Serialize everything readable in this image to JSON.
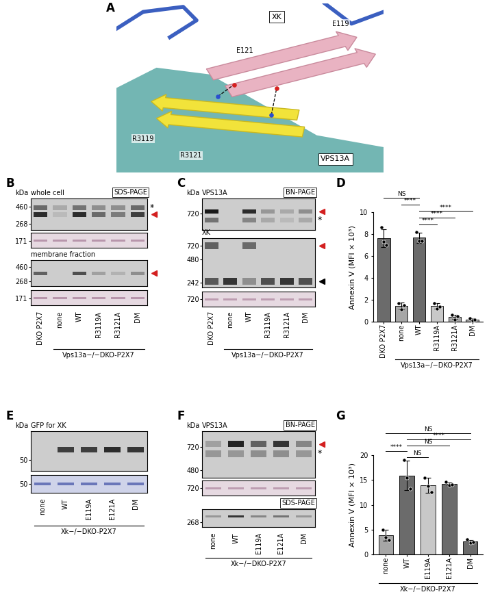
{
  "structure": {
    "panel": "A",
    "boxed_labels": [
      "XK",
      "VPS13A"
    ],
    "residue_labels": [
      "E121",
      "E119",
      "R3119",
      "R3121"
    ]
  },
  "blot_panels": [
    {
      "panel": "B",
      "unit": "kDa",
      "lanes": [
        "DKO P2X7",
        "none",
        "WT",
        "R3119A",
        "R3121A",
        "DM"
      ],
      "group_label": "Vps13a−/−DKO-P2X7",
      "group_members": [
        "none",
        "WT",
        "R3119A",
        "R3121A",
        "DM"
      ],
      "blots": [
        {
          "title": "whole cell",
          "method": "SDS-PAGE",
          "color": "#1a1a1a",
          "ylim": [
            220,
            600
          ],
          "markers": [
            268,
            460
          ],
          "bands": [
            {
              "kda": 445,
              "intensities": [
                0.55,
                0.2,
                0.5,
                0.35,
                0.35,
                0.55
              ]
            },
            {
              "kda": 360,
              "intensities": [
                0.9,
                0.1,
                0.9,
                0.55,
                0.45,
                0.8
              ]
            }
          ],
          "flags": [
            {
              "kda": 445,
              "symbol": "*"
            },
            {
              "kda": 360,
              "color": "#d32020"
            }
          ]
        },
        {
          "color": "#8c5478",
          "ylim": [
            150,
            200
          ],
          "markers": [
            171
          ],
          "bands": [
            {
              "kda": 172,
              "intensities": [
                0.5,
                0.5,
                0.5,
                0.5,
                0.5,
                0.5
              ]
            }
          ]
        },
        {
          "title": "membrane fraction",
          "color": "#1a1a1a",
          "ylim": [
            220,
            600
          ],
          "markers": [
            268,
            460
          ],
          "bands": [
            {
              "kda": 360,
              "intensities": [
                0.6,
                0.0,
                0.7,
                0.25,
                0.15,
                0.35
              ]
            }
          ],
          "flags": [
            {
              "kda": 360,
              "color": "#d32020"
            }
          ]
        },
        {
          "color": "#8c5478",
          "ylim": [
            150,
            200
          ],
          "markers": [
            171
          ],
          "bands": [
            {
              "kda": 172,
              "intensities": [
                0.5,
                0.5,
                0.5,
                0.5,
                0.5,
                0.5
              ]
            }
          ]
        }
      ]
    },
    {
      "panel": "C",
      "unit": "kDa",
      "lanes": [
        "DKO P2X7",
        "none",
        "WT",
        "R3119A",
        "R3121A",
        "DM"
      ],
      "group_label": "Vps13a−/−DKO-P2X7",
      "group_members": [
        "none",
        "WT",
        "R3119A",
        "R3121A",
        "DM"
      ],
      "blots": [
        {
          "title": "VPS13A",
          "method": "BN-PAGE",
          "color": "#1a1a1a",
          "ylim": [
            560,
            900
          ],
          "markers": [
            720
          ],
          "bands": [
            {
              "kda": 740,
              "intensities": [
                1.0,
                0.0,
                0.9,
                0.3,
                0.2,
                0.35
              ]
            },
            {
              "kda": 650,
              "intensities": [
                0.5,
                0.0,
                0.4,
                0.2,
                0.1,
                0.2
              ]
            }
          ],
          "flags": [
            {
              "kda": 740,
              "color": "#d32020"
            },
            {
              "kda": 650,
              "symbol": "*"
            }
          ]
        },
        {
          "title": "XK",
          "color": "#1a1a1a",
          "ylim": [
            210,
            900
          ],
          "markers": [
            242,
            480,
            720
          ],
          "bands": [
            {
              "kda": 720,
              "intensities": [
                0.6,
                0.0,
                0.55,
                0.0,
                0.0,
                0.0
              ]
            },
            {
              "kda": 250,
              "intensities": [
                0.65,
                0.85,
                0.35,
                0.7,
                0.85,
                0.7
              ]
            }
          ],
          "flags": [
            {
              "kda": 720,
              "color": "#d32020"
            },
            {
              "kda": 250,
              "color": "#000000"
            }
          ]
        },
        {
          "color": "#8c5478",
          "ylim": [
            650,
            800
          ],
          "markers": [
            720
          ],
          "bands": [
            {
              "kda": 720,
              "intensities": [
                0.45,
                0.45,
                0.45,
                0.45,
                0.45,
                0.45
              ]
            }
          ]
        }
      ]
    },
    {
      "panel": "E",
      "unit": "kDa",
      "lanes": [
        "none",
        "WT",
        "E119A",
        "E121A",
        "DM"
      ],
      "group_label": "Xk−/−DKO-P2X7",
      "group_members": [
        "none",
        "WT",
        "E119A",
        "E121A",
        "DM"
      ],
      "blots": [
        {
          "title": "GFP for XK",
          "color": "#1a1a1a",
          "ylim": [
            40,
            90
          ],
          "markers": [
            50
          ],
          "bands": [
            {
              "kda": 62,
              "intensities": [
                0.0,
                0.8,
                0.8,
                0.9,
                0.85
              ]
            }
          ]
        },
        {
          "color": "#27399a",
          "ylim": [
            42,
            60
          ],
          "markers": [
            50
          ],
          "bands": [
            {
              "kda": 50,
              "intensities": [
                0.6,
                0.6,
                0.6,
                0.6,
                0.6
              ]
            }
          ]
        }
      ]
    },
    {
      "panel": "F",
      "unit": "kDa",
      "lanes": [
        "none",
        "WT",
        "E119A",
        "E121A",
        "DM"
      ],
      "group_label": "Xk−/−DKO-P2X7",
      "group_members": [
        "none",
        "WT",
        "E119A",
        "E121A",
        "DM"
      ],
      "blots": [
        {
          "title": "VPS13A",
          "method": "BN-PAGE",
          "color": "#1a1a1a",
          "ylim": [
            420,
            950
          ],
          "markers": [
            480,
            720
          ],
          "bands": [
            {
              "kda": 760,
              "intensities": [
                0.25,
                0.95,
                0.6,
                0.85,
                0.4
              ]
            },
            {
              "kda": 640,
              "intensities": [
                0.3,
                0.3,
                0.35,
                0.35,
                0.3
              ]
            }
          ],
          "flags": [
            {
              "kda": 760,
              "color": "#d32020"
            },
            {
              "kda": 640,
              "symbol": "*"
            }
          ]
        },
        {
          "color": "#8c5478",
          "ylim": [
            650,
            800
          ],
          "markers": [
            720
          ],
          "bands": [
            {
              "kda": 720,
              "intensities": [
                0.45,
                0.45,
                0.45,
                0.45,
                0.45
              ]
            }
          ]
        },
        {
          "method": "SDS-PAGE",
          "color": "#1a1a1a",
          "ylim": [
            230,
            420
          ],
          "markers": [
            268
          ],
          "bands": [
            {
              "kda": 330,
              "intensities": [
                0.3,
                0.85,
                0.4,
                0.5,
                0.3
              ]
            }
          ]
        }
      ]
    }
  ],
  "chart_data": [
    {
      "type": "bar",
      "panel": "D",
      "ylabel": "Annexin V (MFI × 10³)",
      "categories": [
        "DKO P2X7",
        "none",
        "WT",
        "R3119A",
        "R3121A",
        "DM"
      ],
      "values": [
        7.63,
        1.43,
        7.67,
        1.43,
        0.43,
        0.2
      ],
      "errors": [
        0.8,
        0.3,
        0.47,
        0.25,
        0.2,
        0.1
      ],
      "points": [
        [
          8.6,
          7.3,
          7.0
        ],
        [
          1.7,
          1.1,
          1.5
        ],
        [
          8.2,
          7.4,
          7.4
        ],
        [
          1.7,
          1.2,
          1.4
        ],
        [
          0.6,
          0.2,
          0.5
        ],
        [
          0.3,
          0.1,
          0.2
        ]
      ],
      "colors": [
        "#6b6b6b",
        "#a6a6a6",
        "#6b6b6b",
        "#c8c8c8",
        "#a6a6a6",
        "#a6a6a6"
      ],
      "ylim": [
        0,
        10
      ],
      "yticks": [
        0,
        2,
        4,
        6,
        8,
        10
      ],
      "comparisons": [
        {
          "from": "WT",
          "to": "R3119A",
          "label": "****"
        },
        {
          "from": "WT",
          "to": "R3121A",
          "label": "****"
        },
        {
          "from": "WT",
          "to": "DM",
          "label": "****"
        },
        {
          "from": "none",
          "to": "WT",
          "label": "****"
        },
        {
          "from": "DKO P2X7",
          "to": "WT",
          "label": "NS"
        }
      ],
      "group_label": "Vps13a−/−DKO-P2X7",
      "group_members": [
        "none",
        "WT",
        "R3119A",
        "R3121A",
        "DM"
      ]
    },
    {
      "type": "bar",
      "panel": "G",
      "ylabel": "Annexin V (MFI × 10³)",
      "categories": [
        "none",
        "WT",
        "E119A",
        "E121A",
        "DM"
      ],
      "values": [
        3.8,
        15.93,
        13.93,
        14.23,
        2.63
      ],
      "errors": [
        1.1,
        2.9,
        1.5,
        0.3,
        0.3
      ],
      "points": [
        [
          5.0,
          3.5,
          2.9
        ],
        [
          19.0,
          15.5,
          13.3
        ],
        [
          15.5,
          13.8,
          12.5
        ],
        [
          14.6,
          14.0,
          14.1
        ],
        [
          3.0,
          2.4,
          2.5
        ]
      ],
      "colors": [
        "#a6a6a6",
        "#6b6b6b",
        "#c8c8c8",
        "#6b6b6b",
        "#6b6b6b"
      ],
      "ylim": [
        0,
        20
      ],
      "yticks": [
        0,
        5,
        10,
        15,
        20
      ],
      "comparisons": [
        {
          "from": "WT",
          "to": "E119A",
          "label": "NS"
        },
        {
          "from": "none",
          "to": "WT",
          "label": "****"
        },
        {
          "from": "WT",
          "to": "E121A",
          "label": "NS"
        },
        {
          "from": "WT",
          "to": "DM",
          "label": "****"
        },
        {
          "from": "none",
          "to": "DM",
          "label": "NS"
        }
      ],
      "group_label": "Xk−/−DKO-P2X7",
      "group_members": [
        "none",
        "WT",
        "E119A",
        "E121A",
        "DM"
      ]
    }
  ]
}
